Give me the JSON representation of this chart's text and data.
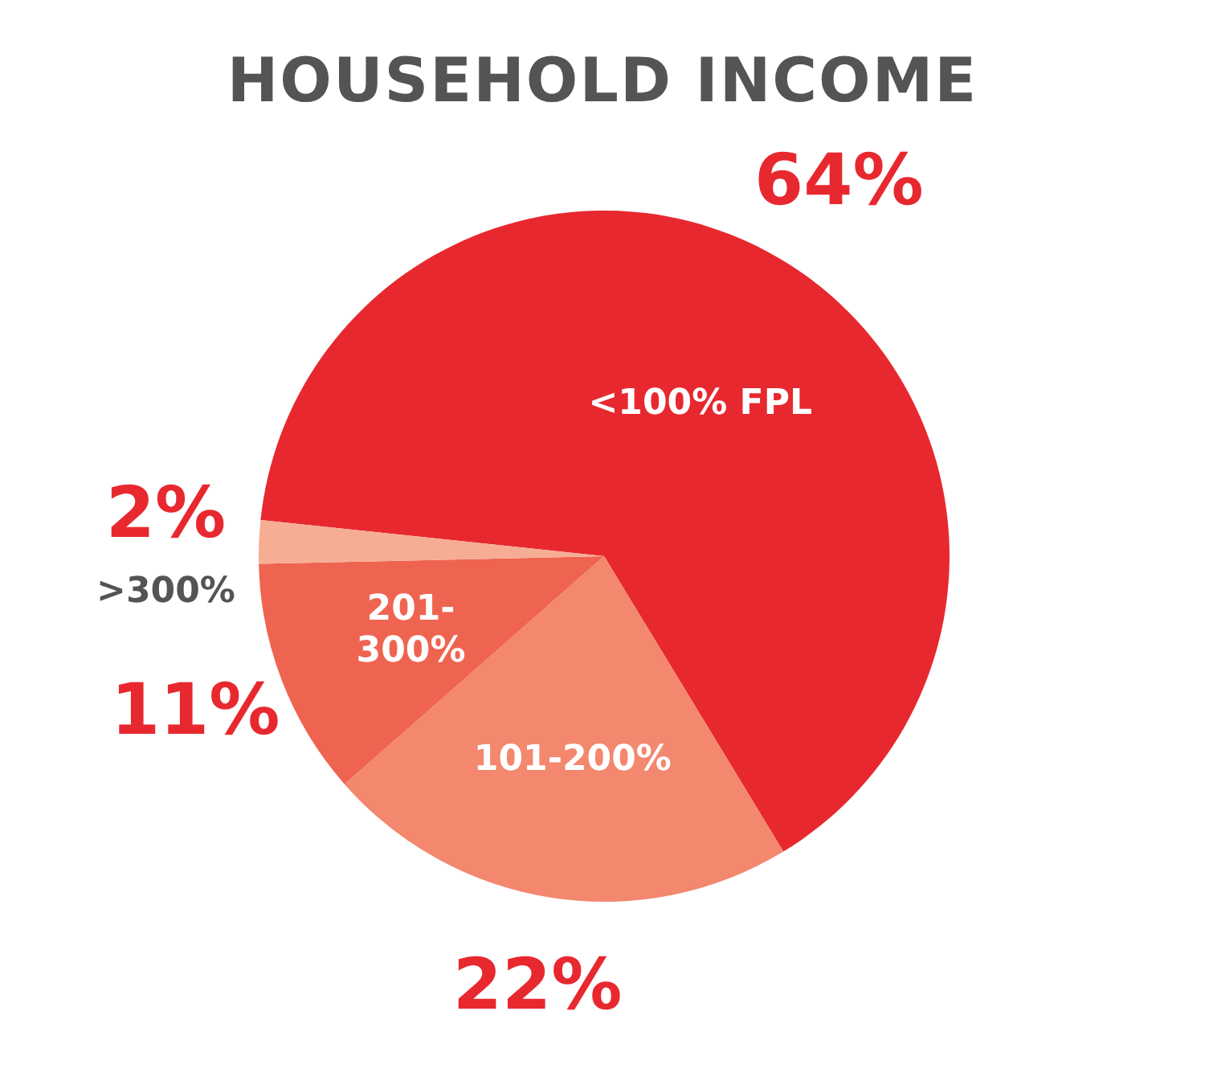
{
  "chart_data": {
    "type": "pie",
    "title": "HOUSEHOLD INCOME",
    "categories": [
      "<100% FPL",
      "101-200%",
      "201-300%",
      ">300%"
    ],
    "values": [
      64,
      22,
      11,
      2
    ],
    "colors": [
      "#e8282f",
      "#f3886e",
      "#ef6450",
      "#f7ad94"
    ],
    "value_labels": [
      "64%",
      "22%",
      "11%",
      "2%"
    ]
  }
}
